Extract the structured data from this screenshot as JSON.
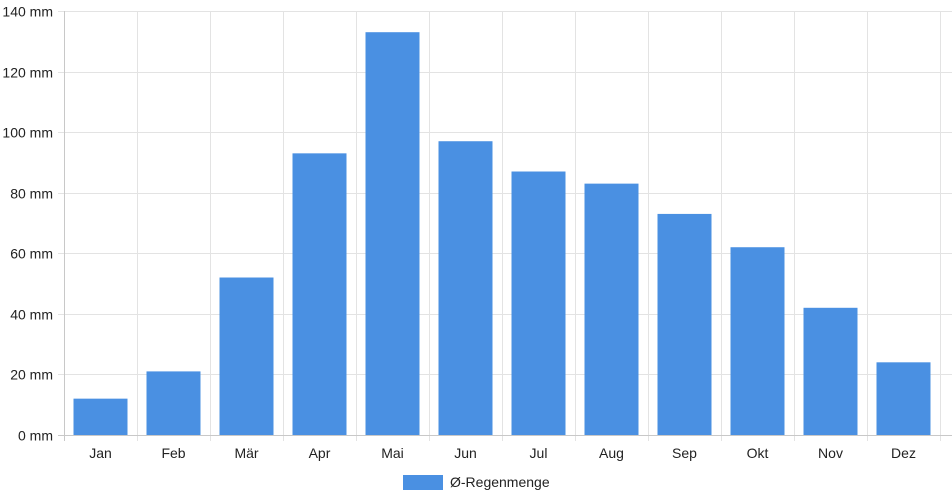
{
  "chart_data": {
    "type": "bar",
    "title": "",
    "xlabel": "",
    "ylabel": "",
    "categories": [
      "Jan",
      "Feb",
      "Mär",
      "Apr",
      "Mai",
      "Jun",
      "Jul",
      "Aug",
      "Sep",
      "Okt",
      "Nov",
      "Dez"
    ],
    "series": [
      {
        "name": "Ø-Regenmenge",
        "color": "#4a90e2",
        "values": [
          12,
          21,
          52,
          93,
          133,
          97,
          87,
          83,
          73,
          62,
          42,
          24
        ]
      }
    ],
    "ylim": [
      0,
      140
    ],
    "yticks": [
      "0 mm",
      "20 mm",
      "40 mm",
      "60 mm",
      "80 mm",
      "100 mm",
      "120 mm",
      "140 mm"
    ],
    "y_tick_values": [
      0,
      20,
      40,
      60,
      80,
      100,
      120,
      140
    ],
    "grid": true,
    "legend_position": "bottom-center"
  }
}
